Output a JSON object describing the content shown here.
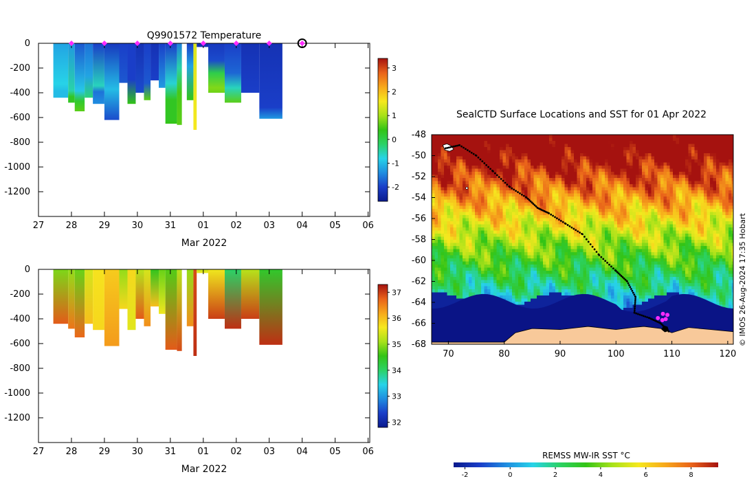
{
  "chart_data": [
    {
      "type": "heatmap",
      "title": "Q9901572  Temperature",
      "xlabel": "Mar 2022",
      "x_tick_labels": [
        "27",
        "28",
        "29",
        "30",
        "31",
        "01",
        "02",
        "03",
        "04",
        "05",
        "06"
      ],
      "y_tick_labels": [
        "0",
        "-200",
        "-400",
        "-600",
        "-800",
        "-1000",
        "-1200"
      ],
      "ylim": [
        -1400,
        0
      ],
      "colorbar": {
        "ticks": [
          "-2",
          "-1",
          "0",
          "1",
          "2",
          "3"
        ],
        "range": [
          -2.6,
          3.4
        ]
      },
      "markers_days": [
        28,
        29,
        30,
        31,
        32,
        33,
        34
      ],
      "current_marker_day": 35,
      "profiles": [
        {
          "x0": 27.45,
          "x1": 27.9,
          "depth": 440,
          "top": -1.2,
          "bottom": -1.0,
          "layers": [
            [
              0.75,
              -0.8
            ],
            [
              0.88,
              -1.0
            ]
          ]
        },
        {
          "x0": 27.9,
          "x1": 28.1,
          "depth": 480,
          "top": -1.3,
          "bottom": 0.3,
          "layers": [
            [
              0.8,
              -0.5
            ],
            [
              0.9,
              0.3
            ]
          ]
        },
        {
          "x0": 28.1,
          "x1": 28.4,
          "depth": 550,
          "top": -1.8,
          "bottom": 0.6,
          "layers": [
            [
              0.7,
              -0.9
            ],
            [
              0.85,
              0.2
            ]
          ]
        },
        {
          "x0": 28.4,
          "x1": 28.65,
          "depth": 440,
          "top": -1.6,
          "bottom": -0.3,
          "layers": [
            [
              0.6,
              -1.2
            ]
          ]
        },
        {
          "x0": 28.65,
          "x1": 29.0,
          "depth": 490,
          "top": -2.0,
          "bottom": -1.4,
          "layers": [
            [
              0.7,
              -0.6
            ],
            [
              0.8,
              -1.6
            ]
          ]
        },
        {
          "x0": 29.0,
          "x1": 29.45,
          "depth": 620,
          "top": -2.1,
          "bottom": -1.9,
          "layers": [
            [
              0.6,
              -1.0
            ]
          ]
        },
        {
          "x0": 29.45,
          "x1": 29.7,
          "depth": 320,
          "top": -2.0,
          "bottom": -1.8,
          "layers": []
        },
        {
          "x0": 29.7,
          "x1": 29.95,
          "depth": 490,
          "top": -2.0,
          "bottom": 0.4,
          "layers": [
            [
              0.6,
              -2.0
            ]
          ]
        },
        {
          "x0": 29.95,
          "x1": 30.2,
          "depth": 400,
          "top": -2.2,
          "bottom": -1.9,
          "layers": []
        },
        {
          "x0": 30.2,
          "x1": 30.4,
          "depth": 460,
          "top": -2.0,
          "bottom": 0.6,
          "layers": [
            [
              0.7,
              -1.8
            ]
          ]
        },
        {
          "x0": 30.4,
          "x1": 30.65,
          "depth": 300,
          "top": -2.2,
          "bottom": -2.0,
          "layers": []
        },
        {
          "x0": 30.65,
          "x1": 30.85,
          "depth": 360,
          "top": -2.0,
          "bottom": -1.3,
          "layers": []
        },
        {
          "x0": 30.85,
          "x1": 31.2,
          "depth": 650,
          "top": -2.0,
          "bottom": 0.4,
          "layers": [
            [
              0.5,
              -0.7
            ],
            [
              0.7,
              0.3
            ],
            [
              0.95,
              0.3
            ]
          ]
        },
        {
          "x0": 31.2,
          "x1": 31.35,
          "depth": 660,
          "top": -1.5,
          "bottom": 0.6,
          "layers": [
            [
              0.3,
              -0.5
            ],
            [
              0.6,
              0.5
            ]
          ]
        },
        {
          "x0": 31.5,
          "x1": 31.7,
          "depth": 460,
          "top": -2.0,
          "bottom": 0.4,
          "layers": [
            [
              0.4,
              -1.2
            ]
          ]
        },
        {
          "x0": 31.7,
          "x1": 31.8,
          "depth": 700,
          "top": 1.4,
          "bottom": 1.6,
          "layers": []
        },
        {
          "x0": 31.8,
          "x1": 32.15,
          "depth": 30,
          "top": -2.2,
          "bottom": -2.2,
          "layers": []
        },
        {
          "x0": 32.15,
          "x1": 32.65,
          "depth": 400,
          "top": -2.1,
          "bottom": 0.7,
          "layers": [
            [
              0.35,
              -1.9
            ],
            [
              0.6,
              0.0
            ],
            [
              0.9,
              0.8
            ]
          ]
        },
        {
          "x0": 32.65,
          "x1": 33.15,
          "depth": 480,
          "top": -2.0,
          "bottom": 0.6,
          "layers": [
            [
              0.5,
              -1.7
            ],
            [
              0.75,
              -0.6
            ]
          ]
        },
        {
          "x0": 33.15,
          "x1": 33.7,
          "depth": 400,
          "top": -2.2,
          "bottom": -2.0,
          "layers": []
        },
        {
          "x0": 33.7,
          "x1": 34.4,
          "depth": 610,
          "top": -2.2,
          "bottom": -1.3,
          "layers": [
            [
              0.85,
              -2.0
            ]
          ]
        }
      ]
    },
    {
      "type": "heatmap",
      "title": "",
      "xlabel": "Mar 2022",
      "x_tick_labels": [
        "27",
        "28",
        "29",
        "30",
        "31",
        "01",
        "02",
        "03",
        "04",
        "05",
        "06"
      ],
      "y_tick_labels": [
        "0",
        "-200",
        "-400",
        "-600",
        "-800",
        "-1000",
        "-1200"
      ],
      "ylim": [
        -1400,
        0
      ],
      "colorbar": {
        "ticks": [
          "32",
          "33",
          "34",
          "35",
          "36",
          "37"
        ],
        "range": [
          31.8,
          37.3
        ]
      },
      "profiles": [
        {
          "x0": 27.45,
          "x1": 27.9,
          "depth": 440,
          "top": 34.9,
          "bottom": 36.8
        },
        {
          "x0": 27.9,
          "x1": 28.1,
          "depth": 480,
          "top": 35.0,
          "bottom": 36.6
        },
        {
          "x0": 28.1,
          "x1": 28.4,
          "depth": 550,
          "top": 34.8,
          "bottom": 36.7
        },
        {
          "x0": 28.4,
          "x1": 28.65,
          "depth": 440,
          "top": 35.4,
          "bottom": 36.0
        },
        {
          "x0": 28.65,
          "x1": 29.0,
          "depth": 490,
          "top": 35.7,
          "bottom": 35.8
        },
        {
          "x0": 29.0,
          "x1": 29.45,
          "depth": 620,
          "top": 35.9,
          "bottom": 36.3
        },
        {
          "x0": 29.45,
          "x1": 29.7,
          "depth": 320,
          "top": 35.0,
          "bottom": 35.8
        },
        {
          "x0": 29.7,
          "x1": 29.95,
          "depth": 490,
          "top": 35.8,
          "bottom": 35.5
        },
        {
          "x0": 29.95,
          "x1": 30.2,
          "depth": 400,
          "top": 35.2,
          "bottom": 36.8
        },
        {
          "x0": 30.2,
          "x1": 30.4,
          "depth": 460,
          "top": 35.4,
          "bottom": 36.4
        },
        {
          "x0": 30.4,
          "x1": 30.65,
          "depth": 300,
          "top": 34.5,
          "bottom": 36.0
        },
        {
          "x0": 30.65,
          "x1": 30.85,
          "depth": 360,
          "top": 34.8,
          "bottom": 35.6
        },
        {
          "x0": 30.85,
          "x1": 31.2,
          "depth": 650,
          "top": 34.7,
          "bottom": 36.8
        },
        {
          "x0": 31.2,
          "x1": 31.35,
          "depth": 660,
          "top": 35.2,
          "bottom": 36.9
        },
        {
          "x0": 31.5,
          "x1": 31.7,
          "depth": 460,
          "top": 35.0,
          "bottom": 36.4
        },
        {
          "x0": 31.7,
          "x1": 31.8,
          "depth": 700,
          "top": 36.9,
          "bottom": 37.1
        },
        {
          "x0": 31.8,
          "x1": 32.15,
          "depth": 30,
          "top": 35.3,
          "bottom": 35.6
        },
        {
          "x0": 32.15,
          "x1": 32.65,
          "depth": 400,
          "top": 35.6,
          "bottom": 37.0
        },
        {
          "x0": 32.65,
          "x1": 33.15,
          "depth": 480,
          "top": 34.0,
          "bottom": 37.1
        },
        {
          "x0": 33.15,
          "x1": 33.7,
          "depth": 400,
          "top": 35.2,
          "bottom": 37.0
        },
        {
          "x0": 33.7,
          "x1": 34.4,
          "depth": 610,
          "top": 34.4,
          "bottom": 37.1
        }
      ]
    },
    {
      "type": "heatmap",
      "title": "SealCTD Surface Locations and SST for 01 Apr 2022",
      "xlabel": "",
      "ylabel": "",
      "x_tick_labels": [
        "70",
        "80",
        "90",
        "100",
        "110",
        "120"
      ],
      "y_tick_labels": [
        "-48",
        "-50",
        "-52",
        "-54",
        "-56",
        "-58",
        "-60",
        "-62",
        "-64",
        "-66",
        "-68"
      ],
      "xlim": [
        67,
        121
      ],
      "ylim": [
        -68,
        -48
      ],
      "colorbar": {
        "label": "REMSS MW-IR SST °C",
        "ticks": [
          "-2",
          "0",
          "2",
          "4",
          "6",
          "8"
        ],
        "range": [
          -2.5,
          9.2
        ]
      },
      "track": [
        [
          69.5,
          -49.3
        ],
        [
          72,
          -49.0
        ],
        [
          75,
          -50.0
        ],
        [
          78,
          -51.5
        ],
        [
          81,
          -53.0
        ],
        [
          84,
          -54.0
        ],
        [
          86,
          -55.0
        ],
        [
          88,
          -55.5
        ],
        [
          91,
          -56.5
        ],
        [
          94,
          -57.5
        ],
        [
          97,
          -59.5
        ],
        [
          100,
          -61.0
        ],
        [
          102,
          -62.0
        ],
        [
          103.5,
          -63.5
        ],
        [
          103.3,
          -65.0
        ],
        [
          106,
          -65.5
        ],
        [
          108,
          -66.0
        ],
        [
          109.5,
          -66.8
        ]
      ],
      "magenta_points": [
        [
          107.5,
          -65.5
        ],
        [
          108.4,
          -65.1
        ],
        [
          109.2,
          -65.2
        ],
        [
          108.3,
          -65.7
        ],
        [
          108.9,
          -65.6
        ]
      ],
      "watermark": "© IMOS 26-Aug-2024 17:35 Hobart"
    }
  ],
  "colors": {
    "temperature_map": [
      "#0a1a8c",
      "#1a3ec8",
      "#1f8de0",
      "#27d3e8",
      "#2bd266",
      "#33c416",
      "#a8e21a",
      "#f6e81e",
      "#f7a81b",
      "#e9621a",
      "#a5120f"
    ],
    "salinity_map": [
      "#0a1a8c",
      "#1a3ec8",
      "#1f8de0",
      "#27d3e8",
      "#2bd266",
      "#33c416",
      "#a8e21a",
      "#f6e81e",
      "#f7a81b",
      "#e9621a",
      "#a5120f"
    ],
    "land": "#f8c99a",
    "ice": "#0a1486",
    "marker": "#ff2bff",
    "track": "#000000"
  }
}
